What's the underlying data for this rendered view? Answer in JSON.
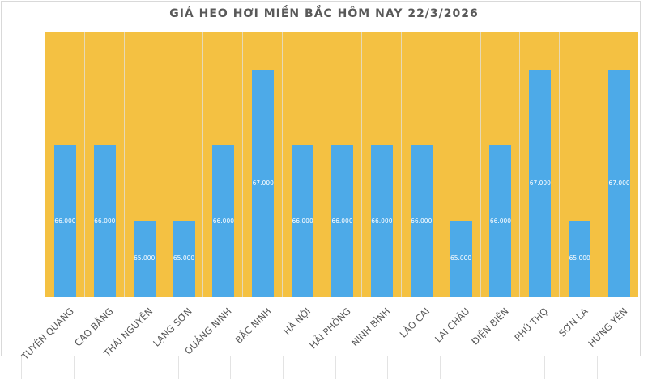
{
  "chart_data": {
    "type": "bar",
    "title": "GIÁ HEO HƠI MIỀN BẮC HÔM NAY 22/3/2026",
    "xlabel": "",
    "ylabel": "",
    "ylim": [
      64000,
      67500
    ],
    "grid": false,
    "legend": null,
    "categories": [
      "TUYÊN QUANG",
      "CAO BẰNG",
      "THÁI NGUYÊN",
      "LẠNG SƠN",
      "QUẢNG NINH",
      "BẮC NINH",
      "HÀ NỘI",
      "HẢI PHÒNG",
      "NINH BÌNH",
      "LÀO CAI",
      "LAI CHÂU",
      "ĐIỆN BIÊN",
      "PHÚ THỌ",
      "SƠN LA",
      "HƯNG YÊN"
    ],
    "values": [
      66000,
      66000,
      65000,
      65000,
      66000,
      67000,
      66000,
      66000,
      66000,
      66000,
      65000,
      66000,
      67000,
      65000,
      67000
    ],
    "labels": [
      "66.000",
      "66.000",
      "65.000",
      "65.000",
      "66.000",
      "67.000",
      "66.000",
      "66.000",
      "66.000",
      "66.000",
      "65.000",
      "66.000",
      "67.000",
      "65.000",
      "67.000"
    ],
    "colors": {
      "bar": "#4daae8",
      "plot_background": "#f4c142",
      "label_text": "#ffffff",
      "title_text": "#595959"
    }
  }
}
